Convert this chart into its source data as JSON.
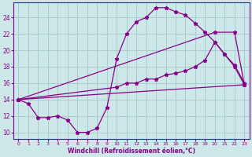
{
  "background_color": "#cce8e8",
  "grid_color": "#aacccc",
  "line_color": "#880088",
  "marker": "*",
  "xlabel": "Windchill (Refroidissement éolien,°C)",
  "ylabel_ticks": [
    10,
    12,
    14,
    16,
    18,
    20,
    22,
    24
  ],
  "xlim": [
    -0.5,
    23.5
  ],
  "ylim": [
    9.2,
    25.8
  ],
  "xticks": [
    0,
    1,
    2,
    3,
    4,
    5,
    6,
    7,
    8,
    9,
    10,
    11,
    12,
    13,
    14,
    15,
    16,
    17,
    18,
    19,
    20,
    21,
    22,
    23
  ],
  "lines": [
    {
      "x": [
        0,
        1,
        2,
        3,
        4,
        5,
        6,
        7,
        8,
        9,
        10,
        11,
        12,
        13,
        14,
        15,
        16,
        17,
        18,
        19,
        20,
        21,
        22,
        23
      ],
      "y": [
        14.0,
        13.5,
        11.8,
        11.8,
        12.0,
        11.5,
        10.0,
        10.0,
        10.5,
        13.0,
        19.0,
        22.0,
        23.5,
        24.0,
        25.2,
        25.2,
        24.7,
        24.3,
        23.3,
        22.2,
        21.0,
        19.5,
        18.2,
        16.0
      ]
    },
    {
      "x": [
        0,
        10,
        11,
        12,
        13,
        14,
        15,
        16,
        17,
        18,
        19,
        20,
        21,
        22,
        23
      ],
      "y": [
        14.0,
        15.5,
        16.0,
        16.0,
        16.5,
        16.5,
        17.0,
        17.2,
        17.5,
        18.0,
        18.8,
        21.0,
        19.5,
        18.0,
        15.8
      ]
    },
    {
      "x": [
        0,
        20,
        22,
        23
      ],
      "y": [
        14.0,
        22.2,
        22.2,
        15.8
      ]
    },
    {
      "x": [
        0,
        23
      ],
      "y": [
        14.0,
        15.8
      ]
    }
  ]
}
